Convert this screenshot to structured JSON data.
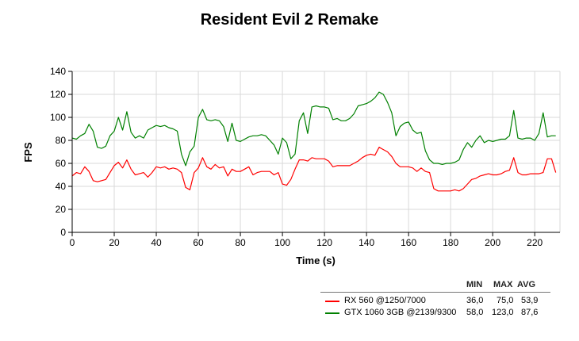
{
  "chart_data": {
    "type": "line",
    "title": "Resident Evil 2 Remake",
    "xlabel": "Time (s)",
    "ylabel": "FPS",
    "xlim": [
      0,
      232
    ],
    "ylim": [
      0,
      140
    ],
    "xticks": [
      0,
      20,
      40,
      60,
      80,
      100,
      120,
      140,
      160,
      180,
      200,
      220
    ],
    "yticks": [
      0,
      20,
      40,
      60,
      80,
      100,
      120,
      140
    ],
    "grid": true,
    "x": [
      0,
      2,
      4,
      6,
      8,
      10,
      12,
      14,
      16,
      18,
      20,
      22,
      24,
      26,
      28,
      30,
      32,
      34,
      36,
      38,
      40,
      42,
      44,
      46,
      48,
      50,
      52,
      54,
      56,
      58,
      60,
      62,
      64,
      66,
      68,
      70,
      72,
      74,
      76,
      78,
      80,
      82,
      84,
      86,
      88,
      90,
      92,
      94,
      96,
      98,
      100,
      102,
      104,
      106,
      108,
      110,
      112,
      114,
      116,
      118,
      120,
      122,
      124,
      126,
      128,
      130,
      132,
      134,
      136,
      138,
      140,
      142,
      144,
      146,
      148,
      150,
      152,
      154,
      156,
      158,
      160,
      162,
      164,
      166,
      168,
      170,
      172,
      174,
      176,
      178,
      180,
      182,
      184,
      186,
      188,
      190,
      192,
      194,
      196,
      198,
      200,
      202,
      204,
      206,
      208,
      210,
      212,
      214,
      216,
      218,
      220,
      222,
      224,
      226,
      228,
      230
    ],
    "series": [
      {
        "name": "RX 560 @1250/7000",
        "color": "#ff0000",
        "values": [
          49,
          52,
          51,
          57,
          53,
          45,
          44,
          45,
          46,
          52,
          58,
          61,
          56,
          63,
          55,
          50,
          51,
          52,
          48,
          52,
          57,
          56,
          57,
          55,
          56,
          55,
          52,
          39,
          37,
          52,
          56,
          65,
          57,
          55,
          59,
          56,
          57,
          49,
          55,
          53,
          53,
          55,
          57,
          50,
          52,
          53,
          53,
          53,
          50,
          52,
          42,
          41,
          46,
          55,
          63,
          63,
          62,
          65,
          64,
          64,
          64,
          62,
          57,
          58,
          58,
          58,
          58,
          60,
          62,
          65,
          67,
          68,
          67,
          74,
          72,
          70,
          66,
          60,
          57,
          57,
          57,
          56,
          53,
          56,
          53,
          52,
          38,
          36,
          36,
          36,
          36,
          37,
          36,
          38,
          42,
          46,
          47,
          49,
          50,
          51,
          50,
          50,
          51,
          53,
          54,
          65,
          52,
          50,
          50,
          51,
          51,
          51,
          52,
          64,
          64,
          52
        ]
      },
      {
        "name": "GTX 1060 3GB @2139/9300",
        "color": "#008000",
        "values": [
          82,
          81,
          84,
          86,
          94,
          88,
          74,
          73,
          75,
          84,
          88,
          100,
          89,
          105,
          87,
          82,
          84,
          82,
          89,
          91,
          93,
          92,
          93,
          91,
          90,
          88,
          68,
          58,
          70,
          75,
          100,
          107,
          98,
          97,
          98,
          97,
          92,
          79,
          95,
          80,
          79,
          81,
          83,
          84,
          84,
          85,
          84,
          80,
          76,
          68,
          82,
          78,
          64,
          68,
          97,
          104,
          86,
          109,
          110,
          109,
          109,
          108,
          98,
          99,
          97,
          97,
          99,
          103,
          110,
          111,
          112,
          114,
          117,
          122,
          120,
          113,
          104,
          84,
          92,
          95,
          96,
          89,
          86,
          87,
          71,
          63,
          60,
          60,
          59,
          60,
          60,
          61,
          63,
          72,
          78,
          74,
          80,
          84,
          78,
          80,
          79,
          80,
          81,
          81,
          84,
          106,
          82,
          81,
          82,
          82,
          80,
          86,
          104,
          83,
          84,
          84
        ]
      }
    ],
    "legend": {
      "position": "bottom-right",
      "headers": [
        "MIN",
        "MAX",
        "AVG"
      ],
      "rows": [
        {
          "name": "RX 560 @1250/7000",
          "color": "#ff0000",
          "min": "36,0",
          "max": "75,0",
          "avg": "53,9"
        },
        {
          "name": "GTX 1060 3GB @2139/9300",
          "color": "#008000",
          "min": "58,0",
          "max": "123,0",
          "avg": "87,6"
        }
      ]
    }
  }
}
